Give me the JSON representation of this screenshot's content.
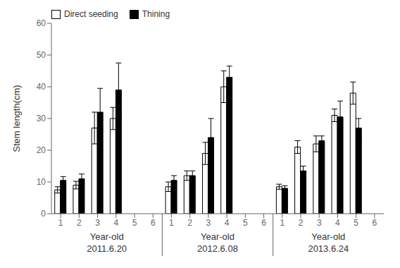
{
  "chart_data": {
    "type": "bar",
    "ylabel": "Stem length(cm)",
    "categories": [
      "1",
      "2",
      "3",
      "4",
      "5",
      "6",
      "1",
      "2",
      "3",
      "4",
      "5",
      "6",
      "1",
      "2",
      "3",
      "4",
      "5",
      "6"
    ],
    "groups": [
      {
        "title": "Year-old",
        "label": "2011.6.20"
      },
      {
        "title": "Year-old",
        "label": "2012.6.08"
      },
      {
        "title": "Year-old",
        "label": "2013.6.24"
      }
    ],
    "series": [
      {
        "name": "Direct seeding",
        "color": "#ffffff",
        "values": [
          7.5,
          9.0,
          27.0,
          30.0,
          null,
          null,
          8.5,
          12.0,
          19.0,
          40.0,
          null,
          null,
          8.5,
          21.0,
          22.0,
          31.0,
          38.0,
          null
        ],
        "errors": [
          1.0,
          1.2,
          5.0,
          3.5,
          null,
          null,
          1.5,
          1.5,
          3.5,
          5.0,
          null,
          null,
          0.8,
          2.0,
          2.5,
          2.0,
          3.5,
          null
        ]
      },
      {
        "name": "Thining",
        "color": "#000000",
        "values": [
          10.5,
          11.0,
          32.0,
          39.0,
          null,
          null,
          10.5,
          12.0,
          24.0,
          43.0,
          null,
          null,
          8.0,
          13.5,
          23.0,
          30.5,
          27.0,
          null
        ],
        "errors": [
          1.2,
          1.5,
          7.5,
          8.5,
          null,
          null,
          1.5,
          1.5,
          6.0,
          3.5,
          null,
          null,
          0.8,
          1.5,
          1.5,
          5.0,
          3.0,
          null
        ]
      }
    ],
    "ylim": [
      0,
      60
    ],
    "yticks": [
      0,
      10,
      20,
      30,
      40,
      50,
      60
    ],
    "grid": false,
    "legend": "upper left"
  }
}
